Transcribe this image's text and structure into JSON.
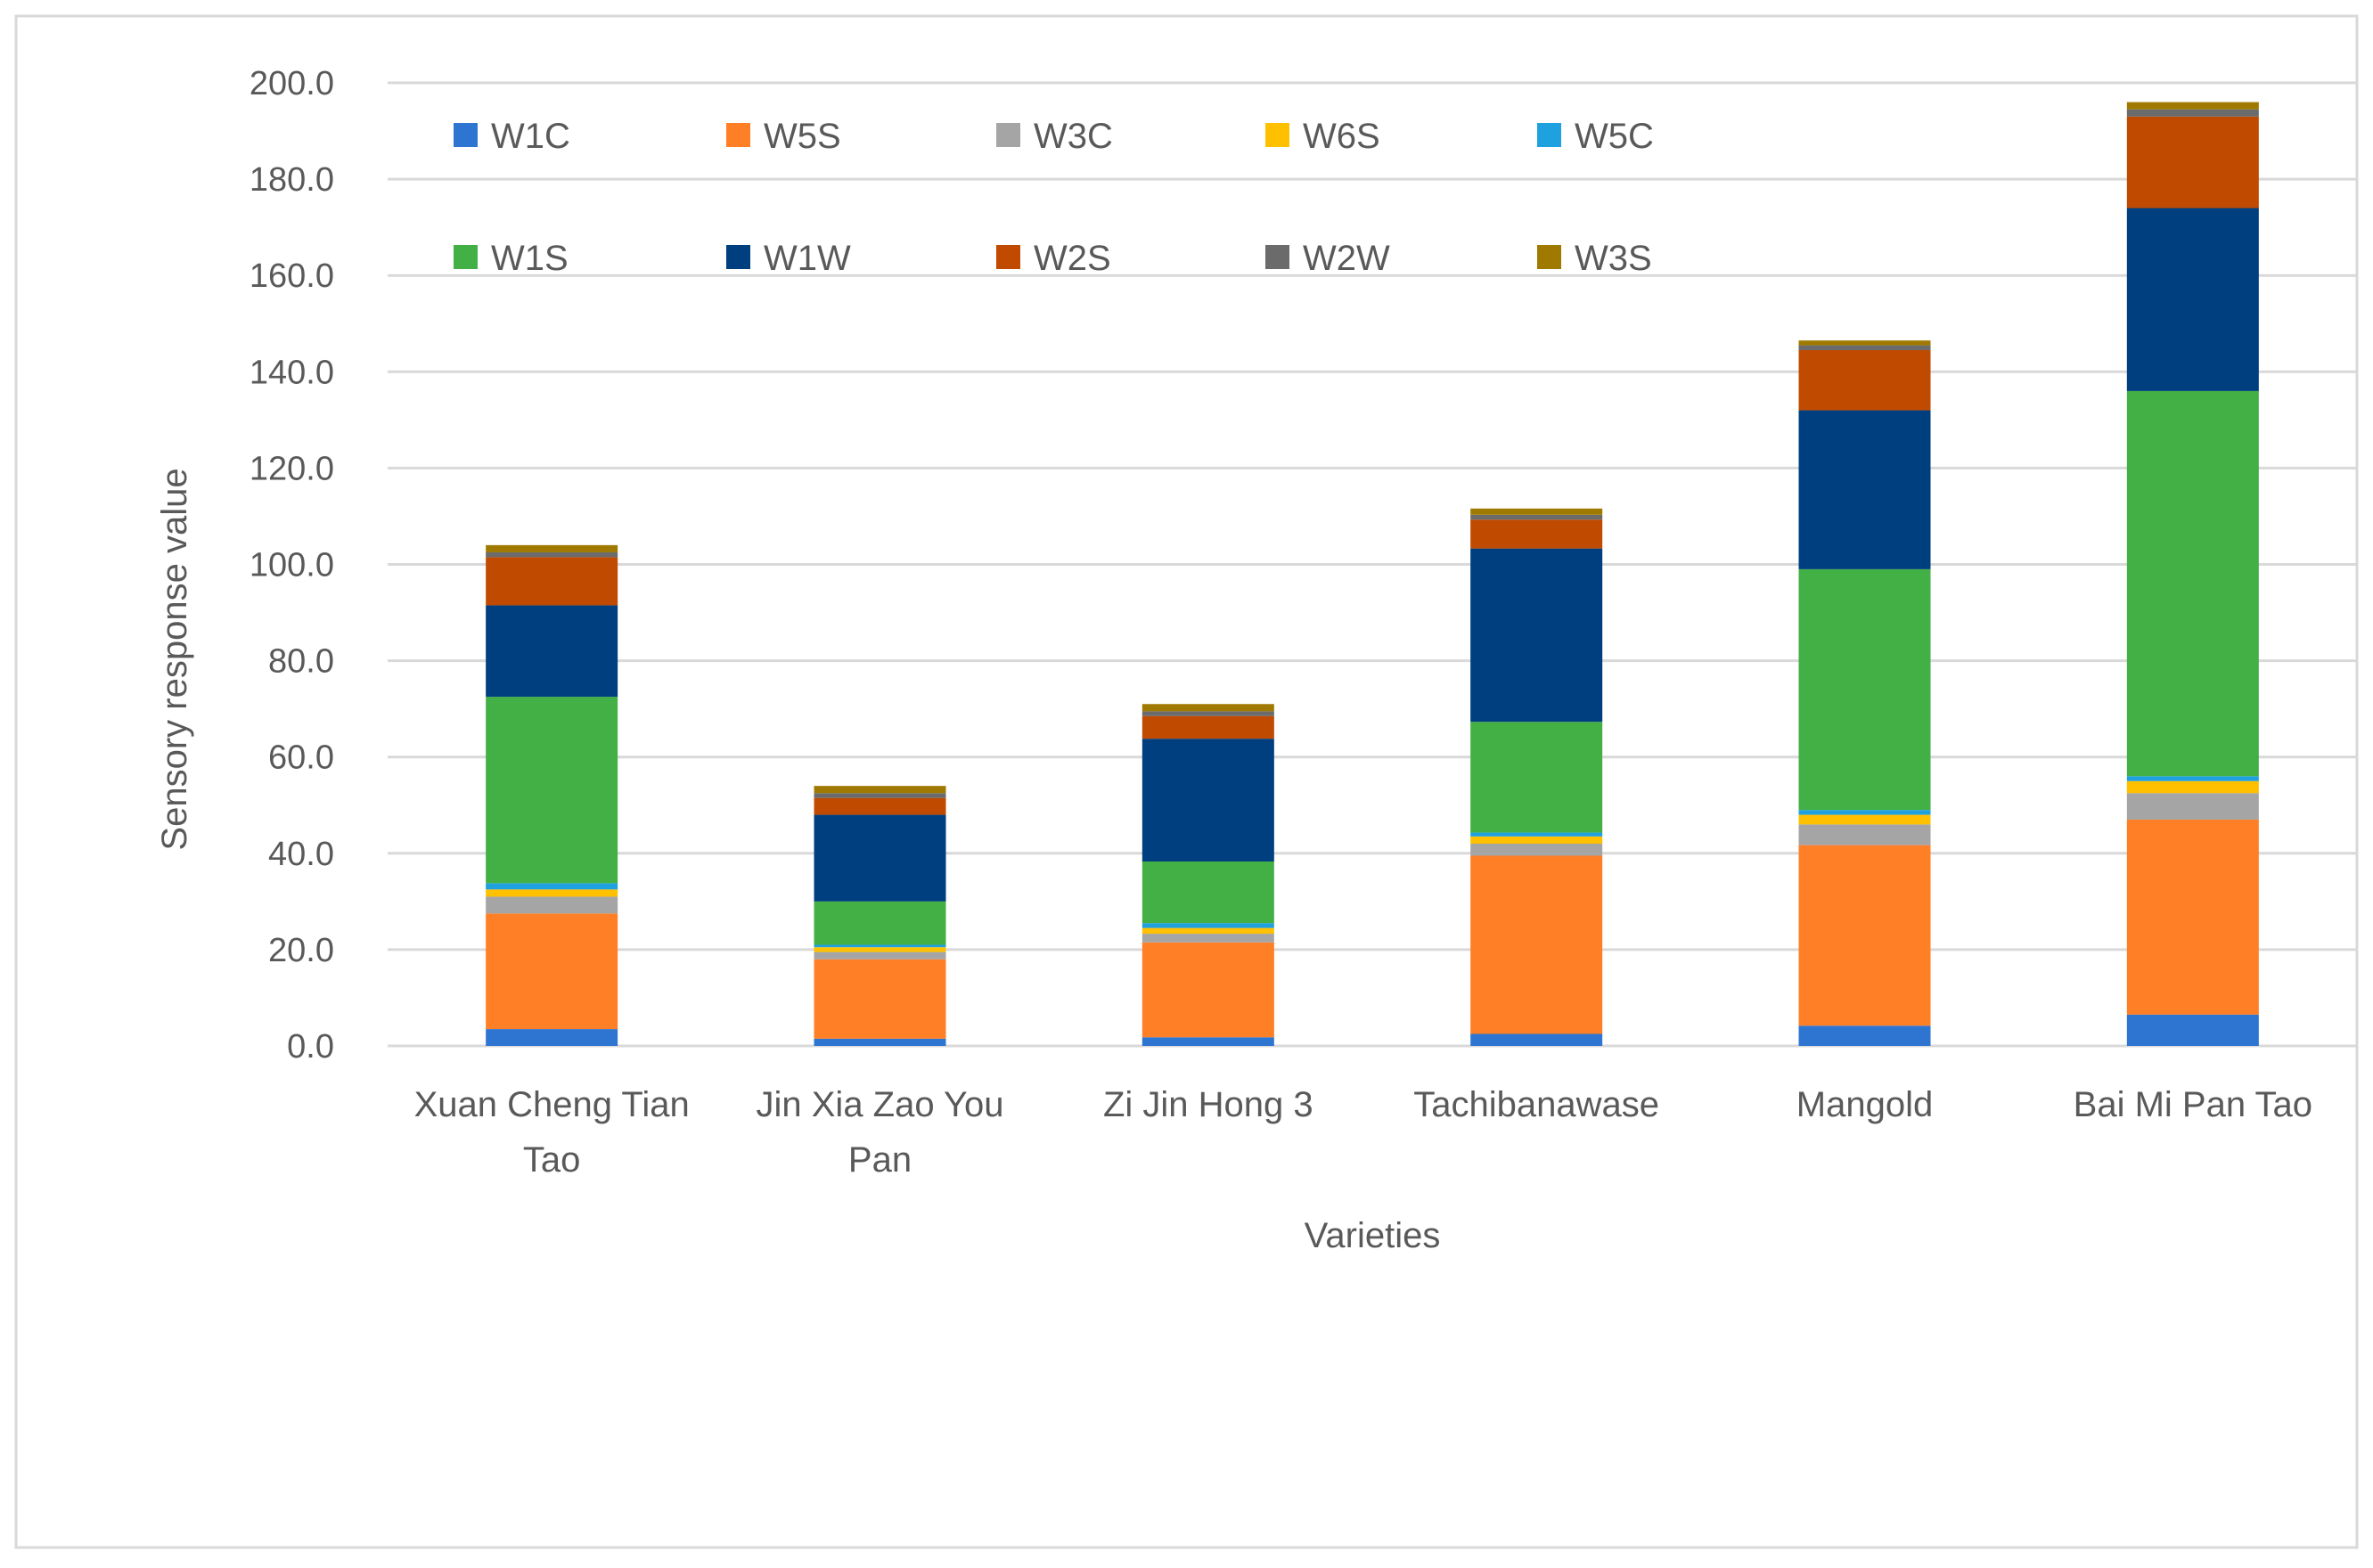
{
  "chart_data": {
    "type": "bar",
    "stacked": true,
    "title": "",
    "xlabel": "Varieties",
    "ylabel": "Sensory response value",
    "ylim": [
      0,
      200
    ],
    "yticks": [
      "0.0",
      "20.0",
      "40.0",
      "60.0",
      "80.0",
      "100.0",
      "120.0",
      "140.0",
      "160.0",
      "180.0",
      "200.0"
    ],
    "grid": true,
    "legend_position": "top-left, inside plot",
    "categories": [
      [
        "Xuan Cheng Tian",
        "Tao"
      ],
      [
        "Jin Xia Zao You",
        "Pan"
      ],
      [
        "Zi Jin Hong 3"
      ],
      [
        "Tachibanawase"
      ],
      [
        "Mangold"
      ],
      [
        "Bai Mi Pan Tao"
      ]
    ],
    "series": [
      {
        "name": "W1C",
        "color": "#2E75D2",
        "values": [
          3.5,
          1.5,
          1.8,
          2.5,
          4.2,
          6.5
        ]
      },
      {
        "name": "W5S",
        "color": "#FF7F27",
        "values": [
          24.0,
          16.5,
          19.7,
          37.0,
          37.5,
          40.5
        ]
      },
      {
        "name": "W3C",
        "color": "#A5A5A5",
        "values": [
          3.5,
          1.5,
          1.8,
          2.5,
          4.3,
          5.5
        ]
      },
      {
        "name": "W6S",
        "color": "#FFC000",
        "values": [
          1.5,
          1.0,
          1.2,
          1.5,
          2.0,
          2.5
        ]
      },
      {
        "name": "W5C",
        "color": "#1FA1E0",
        "values": [
          1.3,
          0.5,
          1.0,
          0.8,
          1.0,
          1.0
        ]
      },
      {
        "name": "W1S",
        "color": "#43B045",
        "values": [
          38.7,
          9.0,
          12.8,
          23.0,
          50.0,
          80.0
        ]
      },
      {
        "name": "W1W",
        "color": "#003F7F",
        "values": [
          19.0,
          18.0,
          25.5,
          36.0,
          33.0,
          38.0
        ]
      },
      {
        "name": "W2S",
        "color": "#C04A00",
        "values": [
          10.0,
          3.5,
          4.7,
          6.0,
          12.5,
          19.0
        ]
      },
      {
        "name": "W2W",
        "color": "#6B6B6B",
        "values": [
          1.0,
          1.0,
          1.0,
          1.0,
          1.0,
          1.5
        ]
      },
      {
        "name": "W3S",
        "color": "#A07A00",
        "values": [
          1.5,
          1.5,
          1.5,
          1.3,
          1.0,
          1.5
        ]
      }
    ]
  }
}
